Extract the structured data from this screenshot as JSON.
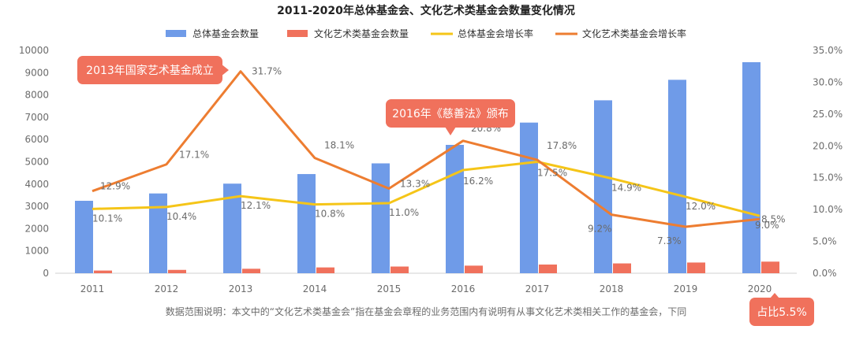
{
  "chart_data": {
    "type": "bar",
    "title": "2011-2020年总体基金会、文化艺术类基金会数量变化情况",
    "categories": [
      "2011",
      "2012",
      "2013",
      "2014",
      "2015",
      "2016",
      "2017",
      "2018",
      "2019",
      "2020"
    ],
    "ylim_left": [
      0,
      10000
    ],
    "ylim_right": [
      0,
      35
    ],
    "left_ticks": [
      "0",
      "1000",
      "2000",
      "3000",
      "4000",
      "5000",
      "6000",
      "7000",
      "8000",
      "9000",
      "10000"
    ],
    "right_ticks": [
      "0.0%",
      "5.0%",
      "10.0%",
      "15.0%",
      "20.0%",
      "25.0%",
      "30.0%",
      "35.0%"
    ],
    "series": [
      {
        "name": "总体基金会数量",
        "kind": "bar",
        "axis": "left",
        "color": "#6f9be8",
        "values": [
          3250,
          3580,
          4020,
          4450,
          4930,
          5760,
          6760,
          7760,
          8680,
          9470
        ]
      },
      {
        "name": "文化艺术类基金会数量",
        "kind": "bar",
        "axis": "left",
        "color": "#f0715c",
        "values": [
          120,
          150,
          200,
          260,
          300,
          340,
          390,
          440,
          480,
          520
        ]
      },
      {
        "name": "总体基金会增长率",
        "kind": "line",
        "axis": "right",
        "color": "#f5c518",
        "values": [
          10.1,
          10.4,
          12.1,
          10.8,
          11.0,
          16.2,
          17.5,
          14.9,
          12.0,
          9.0
        ],
        "labels": [
          "10.1%",
          "10.4%",
          "12.1%",
          "10.8%",
          "11.0%",
          "16.2%",
          "17.5%",
          "14.9%",
          "12.0%",
          "9.0%"
        ]
      },
      {
        "name": "文化艺术类基金会增长率",
        "kind": "line",
        "axis": "right",
        "color": "#ed7d31",
        "values": [
          12.9,
          17.1,
          31.7,
          18.1,
          13.3,
          20.8,
          17.8,
          9.2,
          7.3,
          8.5
        ],
        "labels": [
          "12.9%",
          "17.1%",
          "31.7%",
          "18.1%",
          "13.3%",
          "20.8%",
          "17.8%",
          "9.2%",
          "7.3%",
          "8.5%"
        ]
      }
    ],
    "legend_position": "top",
    "grid": false,
    "annotations": [
      {
        "text": "2013年国家艺术基金成立",
        "category": "2013"
      },
      {
        "text": "2016年《慈善法》颁布",
        "category": "2016"
      },
      {
        "text": "占比5.5%",
        "category": "2020"
      }
    ],
    "note": "数据范围说明：本文中的“文化艺术类基金会”指在基金会章程的业务范围内有说明有从事文化艺术类相关工作的基金会，下同"
  }
}
